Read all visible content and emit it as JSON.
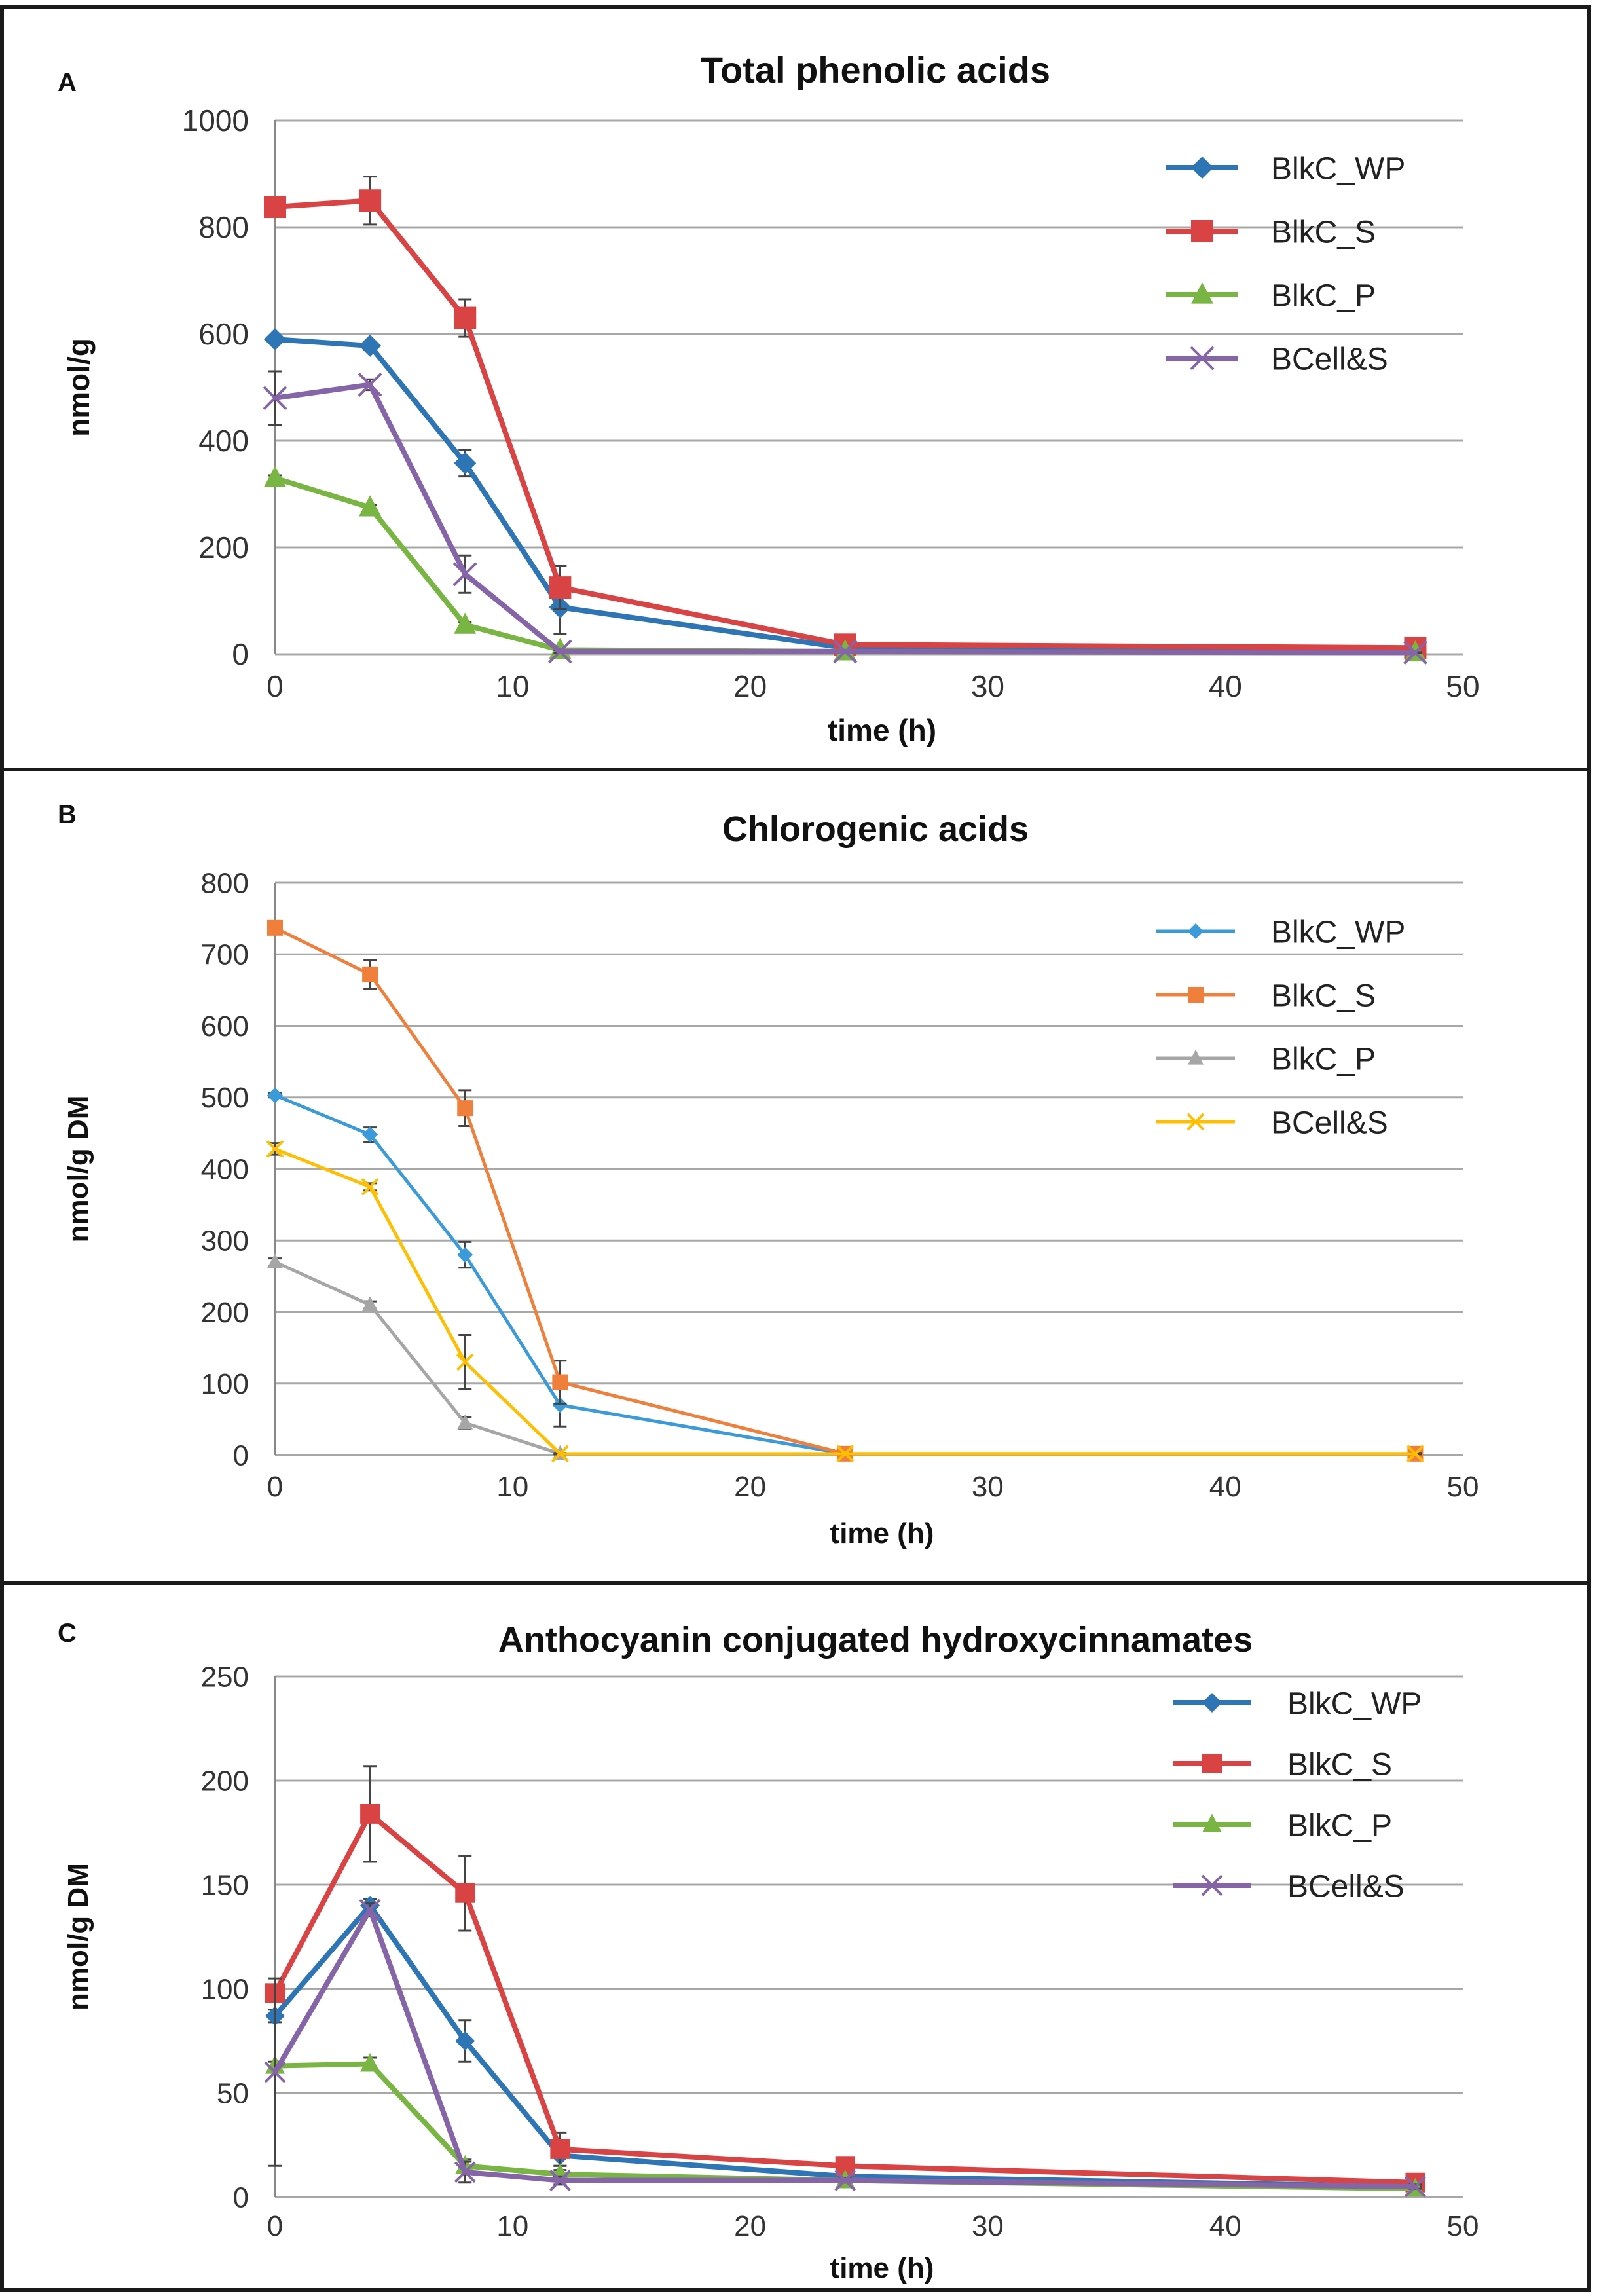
{
  "chart_data": [
    {
      "panel": "A",
      "type": "line",
      "title": "Total phenolic acids",
      "xlabel": "time (h)",
      "ylabel": "nmol/g",
      "xlim": [
        0,
        50
      ],
      "ylim": [
        0,
        1000
      ],
      "xticks": [
        0,
        10,
        20,
        30,
        40,
        50
      ],
      "yticks": [
        0,
        200,
        400,
        600,
        800,
        1000
      ],
      "grid": "horizontal",
      "legend_position": "top-right",
      "x": [
        0,
        4,
        8,
        12,
        24,
        48
      ],
      "series": [
        {
          "name": "BlkC_WP",
          "color": "#2e75b6",
          "marker": "diamond",
          "values": [
            590,
            578,
            358,
            88,
            12,
            8
          ],
          "errors": [
            5,
            8,
            25,
            50,
            3,
            2
          ]
        },
        {
          "name": "BlkC_S",
          "color": "#d94343",
          "marker": "square",
          "values": [
            838,
            850,
            630,
            125,
            18,
            12
          ],
          "errors": [
            8,
            45,
            35,
            40,
            4,
            3
          ]
        },
        {
          "name": "BlkC_P",
          "color": "#79b543",
          "marker": "triangle",
          "values": [
            330,
            275,
            55,
            8,
            5,
            3
          ],
          "errors": [
            5,
            5,
            5,
            2,
            1,
            1
          ]
        },
        {
          "name": "BCell&S",
          "color": "#8664a8",
          "marker": "x",
          "values": [
            480,
            505,
            150,
            5,
            5,
            3
          ],
          "errors": [
            50,
            10,
            35,
            3,
            1,
            1
          ]
        }
      ]
    },
    {
      "panel": "B",
      "type": "line",
      "title": "Chlorogenic acids",
      "xlabel": "time (h)",
      "ylabel": "nmol/g DM",
      "xlim": [
        0,
        50
      ],
      "ylim": [
        0,
        800
      ],
      "xticks": [
        0,
        10,
        20,
        30,
        40,
        50
      ],
      "yticks": [
        0,
        100,
        200,
        300,
        400,
        500,
        600,
        700,
        800
      ],
      "grid": "horizontal",
      "legend_position": "top-right",
      "series": [
        {
          "name": "BlkC_WP",
          "color": "#3b9ad9",
          "marker": "diamond",
          "x": [
            0,
            4,
            8,
            12,
            24
          ],
          "values": [
            503,
            448,
            280,
            70,
            2
          ],
          "errors": [
            3,
            10,
            18,
            30,
            1
          ]
        },
        {
          "name": "BlkC_S",
          "color": "#f07f3c",
          "marker": "square",
          "x": [
            0,
            4,
            8,
            12,
            24,
            48
          ],
          "values": [
            737,
            672,
            485,
            102,
            2,
            2
          ],
          "errors": [
            4,
            20,
            25,
            30,
            1,
            1
          ]
        },
        {
          "name": "BlkC_P",
          "color": "#a6a6a6",
          "marker": "triangle",
          "x": [
            0,
            4,
            8,
            12
          ],
          "values": [
            270,
            210,
            45,
            2
          ],
          "errors": [
            5,
            5,
            8,
            1
          ]
        },
        {
          "name": "BCell&S",
          "color": "#ffbf00",
          "marker": "x",
          "x": [
            0,
            4,
            8,
            12,
            24,
            48
          ],
          "values": [
            428,
            375,
            130,
            2,
            2,
            2
          ],
          "errors": [
            8,
            5,
            38,
            1,
            1,
            1
          ]
        }
      ]
    },
    {
      "panel": "C",
      "type": "line",
      "title": "Anthocyanin conjugated hydroxycinnamates",
      "xlabel": "time (h)",
      "ylabel": "nmol/g DM",
      "xlim": [
        0,
        50
      ],
      "ylim": [
        0,
        250
      ],
      "xticks": [
        0,
        10,
        20,
        30,
        40,
        50
      ],
      "yticks": [
        0,
        50,
        100,
        150,
        200,
        250
      ],
      "grid": "horizontal",
      "legend_position": "top-right",
      "x": [
        0,
        4,
        8,
        12,
        24,
        48
      ],
      "series": [
        {
          "name": "BlkC_WP",
          "color": "#2e75b6",
          "marker": "diamond",
          "values": [
            87,
            140,
            75,
            20,
            10,
            5
          ],
          "errors": [
            3,
            3,
            10,
            5,
            2,
            1
          ]
        },
        {
          "name": "BlkC_S",
          "color": "#d94343",
          "marker": "square",
          "values": [
            98,
            184,
            146,
            23,
            15,
            7
          ],
          "errors": [
            3,
            23,
            18,
            8,
            3,
            2
          ]
        },
        {
          "name": "BlkC_P",
          "color": "#79b543",
          "marker": "triangle",
          "values": [
            63,
            64,
            15,
            11,
            8,
            4
          ],
          "errors": [
            2,
            3,
            3,
            2,
            1,
            1
          ]
        },
        {
          "name": "BCell&S",
          "color": "#8664a8",
          "marker": "x",
          "values": [
            60,
            138,
            12,
            8,
            8,
            5
          ],
          "errors": [
            45,
            3,
            5,
            2,
            1,
            1
          ]
        }
      ]
    }
  ]
}
